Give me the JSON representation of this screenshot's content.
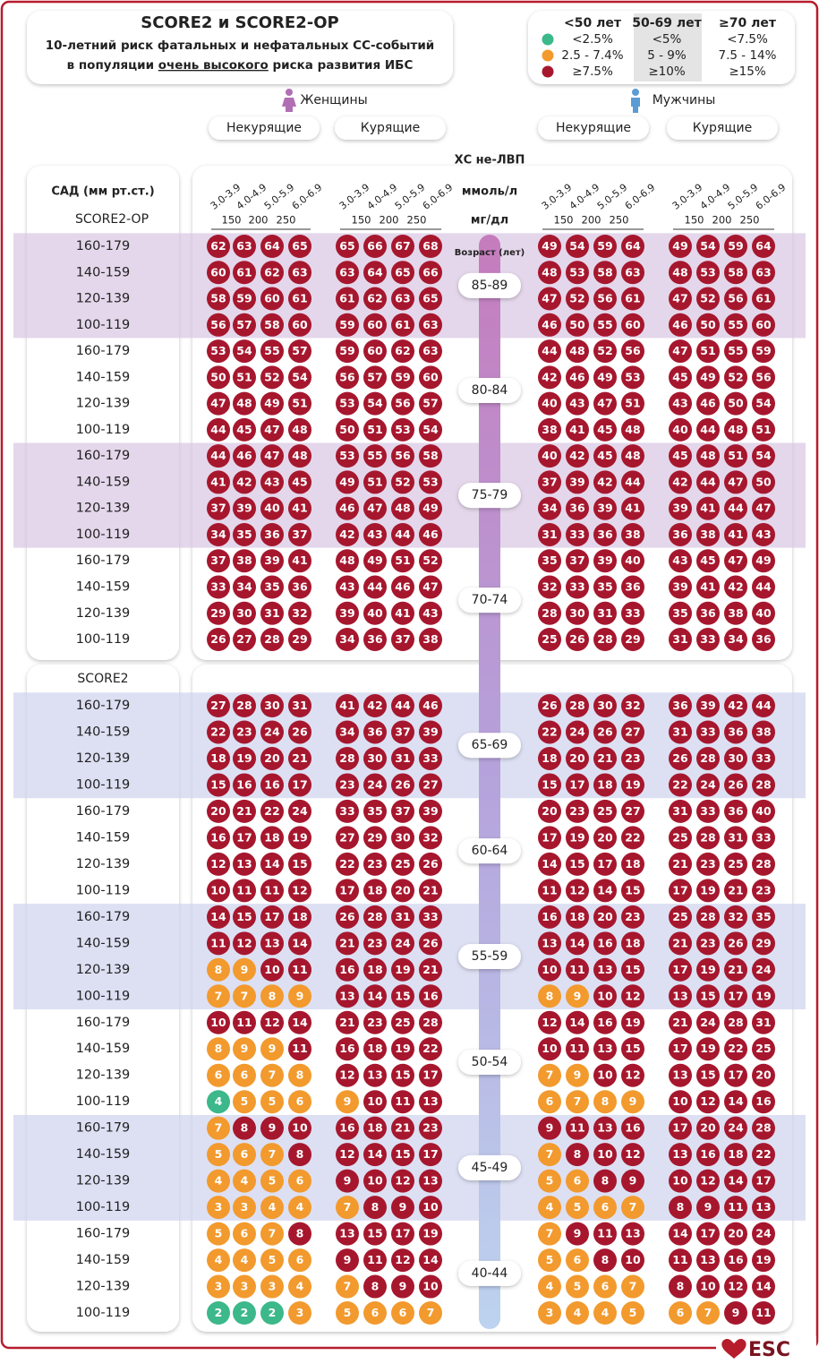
{
  "header": {
    "title": "SCORE2 и SCORE2-OP",
    "subtitle": "10-летний риск фатальных и нефатальных СС-событий",
    "line3": [
      "в популяции ",
      "очень высокого",
      " риска развития ИБС"
    ]
  },
  "colors": [
    "#3cb88b",
    "#f29a2e",
    "#a6172e"
  ],
  "groups": [
    {
      "name": "Женщины",
      "columns": [
        "Некурящие",
        "Курящие"
      ]
    },
    {
      "name": "Мужчины",
      "columns": [
        "Некурящие",
        "Курящие"
      ]
    }
  ],
  "chol_title": "ХС не-ЛВП",
  "chol_ticks": [
    "3.0-3.9",
    "4.0-4.9",
    "5.0-5.9",
    "6.0-6.9"
  ],
  "mmol_unit": "ммоль/л",
  "mgdl_unit": "мг/дл",
  "mgdl_ticks": [
    150,
    200,
    250
  ],
  "sbp_title": "САД (мм рт.ст.)",
  "sbp_rows": [
    "160-179",
    "140-159",
    "120-139",
    "100-119"
  ],
  "age_title": "Возраст (лет)",
  "risk_groups": [
    {
      "label": "<50 лет",
      "levels": [
        {
          "value": 2.5,
          "label": "<2.5%"
        },
        {
          "value": 2.5,
          "label": "2.5 - 7.4%"
        },
        {
          "value": 7.5,
          "label": "≥7.5%"
        }
      ],
      "ages": [
        {
          "age": "45-49",
          "values": [
            [
              7,
              8,
              9,
              10,
              16,
              18,
              21,
              23,
              9,
              11,
              13,
              16,
              17,
              20,
              24,
              28
            ],
            [
              5,
              6,
              7,
              8,
              12,
              14,
              15,
              17,
              7,
              8,
              10,
              12,
              13,
              16,
              18,
              22
            ],
            [
              4,
              4,
              5,
              6,
              9,
              10,
              12,
              13,
              5,
              6,
              8,
              9,
              10,
              12,
              14,
              17
            ],
            [
              3,
              3,
              4,
              4,
              7,
              8,
              9,
              10,
              4,
              5,
              6,
              7,
              8,
              9,
              11,
              13
            ]
          ]
        },
        {
          "age": "40-44",
          "values": [
            [
              5,
              6,
              7,
              8,
              13,
              15,
              17,
              19,
              7,
              9,
              11,
              13,
              14,
              17,
              20,
              24
            ],
            [
              4,
              4,
              5,
              6,
              9,
              11,
              12,
              14,
              5,
              6,
              8,
              10,
              11,
              13,
              16,
              19
            ],
            [
              3,
              3,
              3,
              4,
              7,
              8,
              9,
              10,
              4,
              5,
              6,
              7,
              8,
              10,
              12,
              14
            ],
            [
              2,
              2,
              2,
              3,
              5,
              6,
              6,
              7,
              3,
              4,
              4,
              5,
              6,
              7,
              9,
              11
            ]
          ]
        }
      ]
    },
    {
      "label": "50-69 лет",
      "model": "SCORE2",
      "levels": [
        {
          "value": 5,
          "label": "<5%"
        },
        {
          "value": 5,
          "label": "5 - 9%"
        },
        {
          "value": 10,
          "label": "≥10%"
        }
      ],
      "ages": [
        {
          "age": "65-69",
          "values": [
            [
              27,
              28,
              30,
              31,
              41,
              42,
              44,
              46,
              26,
              28,
              30,
              32,
              36,
              39,
              42,
              44
            ],
            [
              22,
              23,
              24,
              26,
              34,
              36,
              37,
              39,
              22,
              24,
              26,
              27,
              31,
              33,
              36,
              38
            ],
            [
              18,
              19,
              20,
              21,
              28,
              30,
              31,
              33,
              18,
              20,
              21,
              23,
              26,
              28,
              30,
              33
            ],
            [
              15,
              16,
              16,
              17,
              23,
              24,
              26,
              27,
              15,
              17,
              18,
              19,
              22,
              24,
              26,
              28
            ]
          ]
        },
        {
          "age": "60-64",
          "values": [
            [
              20,
              21,
              22,
              24,
              33,
              35,
              37,
              39,
              20,
              23,
              25,
              27,
              31,
              33,
              36,
              40
            ],
            [
              16,
              17,
              18,
              19,
              27,
              29,
              30,
              32,
              17,
              19,
              20,
              22,
              25,
              28,
              31,
              33
            ],
            [
              12,
              13,
              14,
              15,
              22,
              23,
              25,
              26,
              14,
              15,
              17,
              18,
              21,
              23,
              25,
              28
            ],
            [
              10,
              11,
              11,
              12,
              17,
              18,
              20,
              21,
              11,
              12,
              14,
              15,
              17,
              19,
              21,
              23
            ]
          ]
        },
        {
          "age": "55-59",
          "values": [
            [
              14,
              15,
              17,
              18,
              26,
              28,
              31,
              33,
              16,
              18,
              20,
              23,
              25,
              28,
              32,
              35
            ],
            [
              11,
              12,
              13,
              14,
              21,
              23,
              24,
              26,
              13,
              14,
              16,
              18,
              21,
              23,
              26,
              29
            ],
            [
              8,
              9,
              10,
              11,
              16,
              18,
              19,
              21,
              10,
              11,
              13,
              15,
              17,
              19,
              21,
              24
            ],
            [
              7,
              7,
              8,
              9,
              13,
              14,
              15,
              16,
              8,
              9,
              10,
              12,
              13,
              15,
              17,
              19
            ]
          ]
        },
        {
          "age": "50-54",
          "values": [
            [
              10,
              11,
              12,
              14,
              21,
              23,
              25,
              28,
              12,
              14,
              16,
              19,
              21,
              24,
              28,
              31
            ],
            [
              8,
              9,
              9,
              11,
              16,
              18,
              19,
              22,
              10,
              11,
              13,
              15,
              17,
              19,
              22,
              25
            ],
            [
              6,
              6,
              7,
              8,
              12,
              13,
              15,
              17,
              7,
              9,
              10,
              12,
              13,
              15,
              17,
              20
            ],
            [
              4,
              5,
              5,
              6,
              9,
              10,
              11,
              13,
              6,
              7,
              8,
              9,
              10,
              12,
              14,
              16
            ]
          ]
        }
      ]
    },
    {
      "label": "≥70 лет",
      "model": "SCORE2-OP",
      "levels": [
        {
          "value": 7.5,
          "label": "<7.5%"
        },
        {
          "value": 7.5,
          "label": "7.5 - 14%"
        },
        {
          "value": 15,
          "label": "≥15%"
        }
      ],
      "ages": [
        {
          "age": "85-89",
          "values": [
            [
              62,
              63,
              64,
              65,
              65,
              66,
              67,
              68,
              49,
              54,
              59,
              64,
              49,
              54,
              59,
              64
            ],
            [
              60,
              61,
              62,
              63,
              63,
              64,
              65,
              66,
              48,
              53,
              58,
              63,
              48,
              53,
              58,
              63
            ],
            [
              58,
              59,
              60,
              61,
              61,
              62,
              63,
              65,
              47,
              52,
              56,
              61,
              47,
              52,
              56,
              61
            ],
            [
              56,
              57,
              58,
              60,
              59,
              60,
              61,
              63,
              46,
              50,
              55,
              60,
              46,
              50,
              55,
              60
            ]
          ]
        },
        {
          "age": "80-84",
          "values": [
            [
              53,
              54,
              55,
              57,
              59,
              60,
              62,
              63,
              44,
              48,
              52,
              56,
              47,
              51,
              55,
              59
            ],
            [
              50,
              51,
              52,
              54,
              56,
              57,
              59,
              60,
              42,
              46,
              49,
              53,
              45,
              49,
              52,
              56
            ],
            [
              47,
              48,
              49,
              51,
              53,
              54,
              56,
              57,
              40,
              43,
              47,
              51,
              43,
              46,
              50,
              54
            ],
            [
              44,
              45,
              47,
              48,
              50,
              51,
              53,
              54,
              38,
              41,
              45,
              48,
              40,
              44,
              48,
              51
            ]
          ]
        },
        {
          "age": "75-79",
          "values": [
            [
              44,
              46,
              47,
              48,
              53,
              55,
              56,
              58,
              40,
              42,
              45,
              48,
              45,
              48,
              51,
              54
            ],
            [
              41,
              42,
              43,
              45,
              49,
              51,
              52,
              53,
              37,
              39,
              42,
              44,
              42,
              44,
              47,
              50
            ],
            [
              37,
              39,
              40,
              41,
              46,
              47,
              48,
              49,
              34,
              36,
              39,
              41,
              39,
              41,
              44,
              47
            ],
            [
              34,
              35,
              36,
              37,
              42,
              43,
              44,
              46,
              31,
              33,
              36,
              38,
              36,
              38,
              41,
              43
            ]
          ]
        },
        {
          "age": "70-74",
          "values": [
            [
              37,
              38,
              39,
              41,
              48,
              49,
              51,
              52,
              35,
              37,
              39,
              40,
              43,
              45,
              47,
              49
            ],
            [
              33,
              34,
              35,
              36,
              43,
              44,
              46,
              47,
              32,
              33,
              35,
              36,
              39,
              41,
              42,
              44
            ],
            [
              29,
              30,
              31,
              32,
              39,
              40,
              41,
              43,
              28,
              30,
              31,
              33,
              35,
              36,
              38,
              40
            ],
            [
              26,
              27,
              28,
              29,
              34,
              36,
              37,
              38,
              25,
              26,
              28,
              29,
              31,
              33,
              34,
              36
            ]
          ]
        }
      ]
    }
  ],
  "logo": "ESC"
}
